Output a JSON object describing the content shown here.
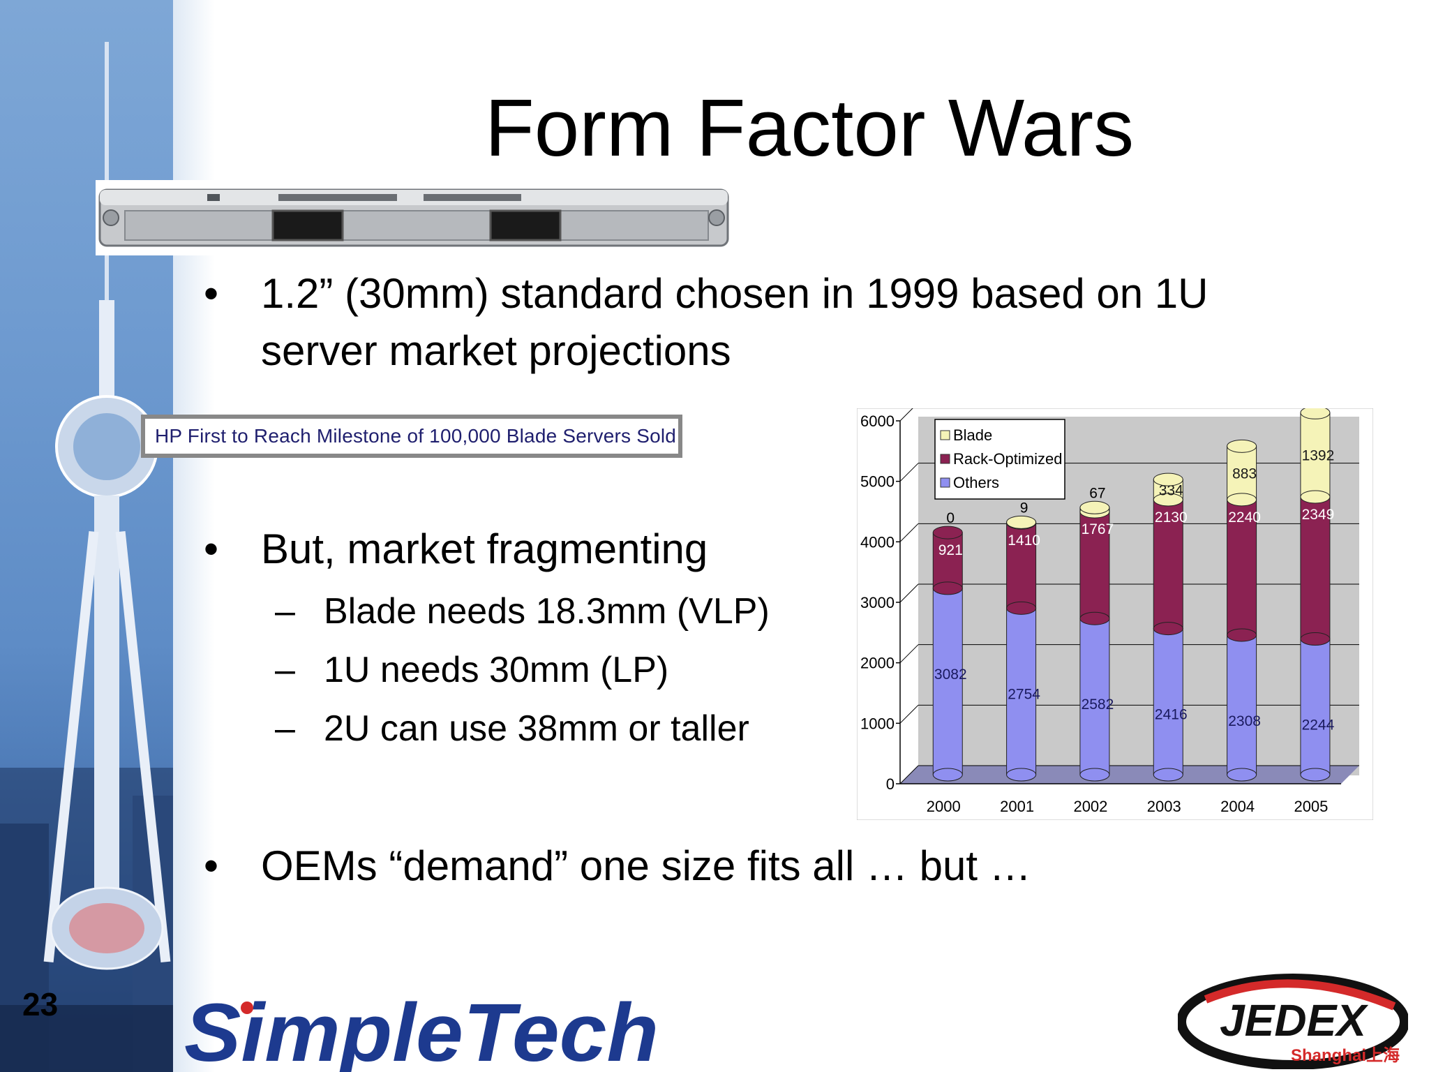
{
  "slide": {
    "title": "Form Factor Wars",
    "page_number": "23"
  },
  "bullets": [
    {
      "marker": "•",
      "text_line1": "1.2” (30mm) standard chosen in 1999 based on 1U",
      "text_line2": "server market projections"
    },
    {
      "marker": "•",
      "text": "But, market fragmenting"
    },
    {
      "marker": "•",
      "text": "OEMs “demand” one size fits all … but …"
    }
  ],
  "sub_bullets": [
    {
      "marker": "–",
      "text": "Blade needs 18.3mm (VLP)"
    },
    {
      "marker": "–",
      "text": "1U needs 30mm (LP)"
    },
    {
      "marker": "–",
      "text": "2U can use 38mm or taller"
    }
  ],
  "headline_clip": "HP First to Reach Milestone of 100,000 Blade Servers Sold",
  "logos": {
    "simpletech": "SimpleTech",
    "jedex_main": "JEDEX",
    "jedex_sub": "Shanghai上海"
  },
  "colors": {
    "blade": "#f5f3b8",
    "rack_optimized": "#8b2252",
    "others": "#8f8ff0",
    "chart_wall": "#c9c9c9",
    "chart_floor": "#8a8ab8"
  },
  "chart_data": {
    "type": "bar",
    "stacked": true,
    "three_d": true,
    "categories": [
      "2000",
      "2001",
      "2002",
      "2003",
      "2004",
      "2005"
    ],
    "series": [
      {
        "name": "Others",
        "values": [
          3082,
          2754,
          2582,
          2416,
          2308,
          2244
        ]
      },
      {
        "name": "Rack-Optimized",
        "values": [
          921,
          1410,
          1767,
          2130,
          2240,
          2349
        ]
      },
      {
        "name": "Blade",
        "values": [
          0,
          9,
          67,
          334,
          883,
          1392
        ]
      }
    ],
    "ylim": [
      0,
      6000
    ],
    "yticks": [
      "0",
      "1000",
      "2000",
      "3000",
      "4000",
      "5000",
      "6000"
    ],
    "legend_position": "top-left",
    "grid": true
  }
}
